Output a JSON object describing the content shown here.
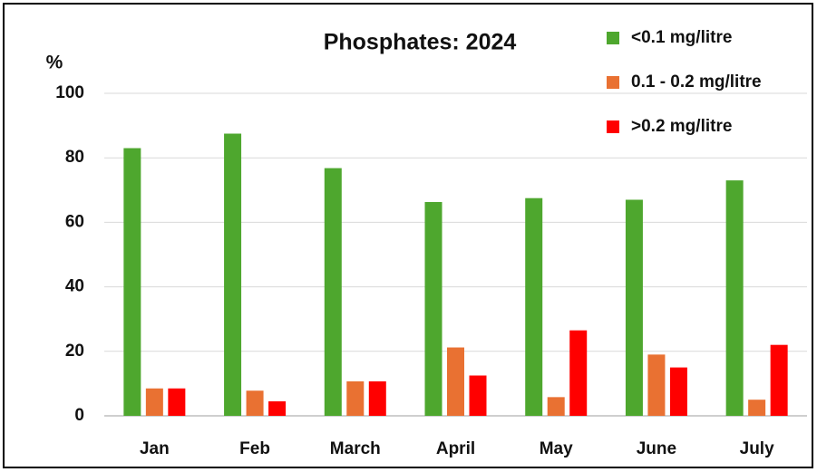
{
  "chart_data": {
    "type": "bar",
    "title": "Phosphates: 2024",
    "y_label": "%",
    "categories": [
      "Jan",
      "Feb",
      "March",
      "April",
      "May",
      "June",
      "July"
    ],
    "series": [
      {
        "name": "<0.1 mg/litre",
        "color": "#4ea72e",
        "values": [
          83,
          87.5,
          76.8,
          66.3,
          67.5,
          67,
          73
        ]
      },
      {
        "name": "0.1 - 0.2 mg/litre",
        "color": "#e97132",
        "values": [
          8.5,
          7.8,
          10.7,
          21.2,
          5.8,
          19,
          5
        ]
      },
      {
        "name": ">0.2 mg/litre",
        "color": "#ff0000",
        "values": [
          8.5,
          4.5,
          10.7,
          12.5,
          26.5,
          15,
          22
        ]
      }
    ],
    "ylim": [
      0,
      100
    ],
    "yticks": [
      0,
      20,
      40,
      60,
      80,
      100
    ],
    "grid": true,
    "legend": "top-right"
  }
}
